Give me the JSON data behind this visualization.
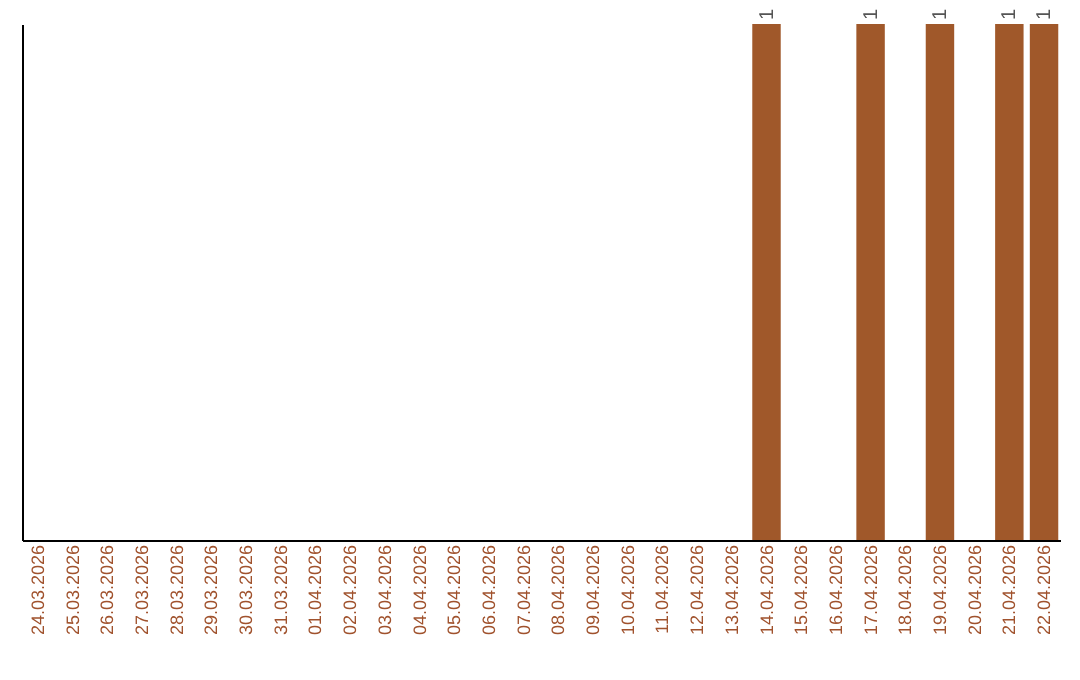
{
  "chart_data": {
    "type": "bar",
    "categories": [
      "24.03.2026",
      "25.03.2026",
      "26.03.2026",
      "27.03.2026",
      "28.03.2026",
      "29.03.2026",
      "30.03.2026",
      "31.03.2026",
      "01.04.2026",
      "02.04.2026",
      "03.04.2026",
      "04.04.2026",
      "05.04.2026",
      "06.04.2026",
      "07.04.2026",
      "08.04.2026",
      "09.04.2026",
      "10.04.2026",
      "11.04.2026",
      "12.04.2026",
      "13.04.2026",
      "14.04.2026",
      "15.04.2026",
      "16.04.2026",
      "17.04.2026",
      "18.04.2026",
      "19.04.2026",
      "20.04.2026",
      "21.04.2026",
      "22.04.2026"
    ],
    "values": [
      null,
      null,
      null,
      null,
      null,
      null,
      null,
      null,
      null,
      null,
      null,
      null,
      null,
      null,
      null,
      null,
      null,
      null,
      null,
      null,
      null,
      1,
      null,
      null,
      1,
      null,
      1,
      null,
      1,
      1
    ],
    "value_labels": [
      null,
      null,
      null,
      null,
      null,
      null,
      null,
      null,
      null,
      null,
      null,
      null,
      null,
      null,
      null,
      null,
      null,
      null,
      null,
      null,
      null,
      "1",
      null,
      null,
      "1",
      null,
      "1",
      null,
      "1",
      "1"
    ],
    "color": "#a0582a"
  }
}
